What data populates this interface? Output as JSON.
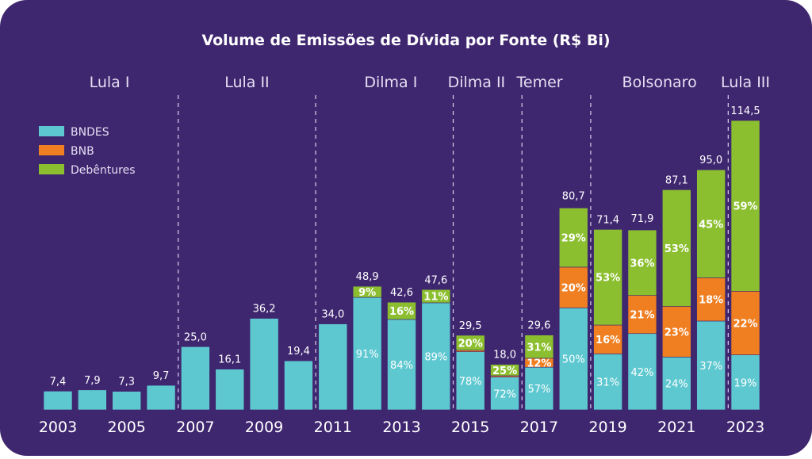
{
  "chart_data": {
    "type": "bar",
    "stacked": true,
    "title": "Volume de Emissões de Dívida por Fonte (R$ Bi)",
    "xlabel": "",
    "ylabel": "",
    "ylim": [
      0,
      120
    ],
    "grid": false,
    "legend_position": "top-left",
    "categories": [
      "2003",
      "2004",
      "2005",
      "2006",
      "2007",
      "2008",
      "2009",
      "2010",
      "2011",
      "2012",
      "2013",
      "2014",
      "2015",
      "2016",
      "2017",
      "2018",
      "2019",
      "2020",
      "2021",
      "2022",
      "2023"
    ],
    "tick_labels": [
      "2003",
      "2005",
      "2007",
      "2009",
      "2011",
      "2013",
      "2015",
      "2017",
      "2019",
      "2021",
      "2023"
    ],
    "totals": [
      7.4,
      7.9,
      7.3,
      9.7,
      25.0,
      16.1,
      36.2,
      19.4,
      34.0,
      48.9,
      42.6,
      47.6,
      29.5,
      18.0,
      29.6,
      80.7,
      71.4,
      71.9,
      87.1,
      95.0,
      114.5
    ],
    "total_labels": [
      "7,4",
      "7,9",
      "7,3",
      "9,7",
      "25,0",
      "16,1",
      "36,2",
      "19,4",
      "34,0",
      "48,9",
      "42,6",
      "47,6",
      "29,5",
      "18,0",
      "29,6",
      "80,7",
      "71,4",
      "71,9",
      "87,1",
      "95,0",
      "114,5"
    ],
    "series": [
      {
        "name": "BNDES",
        "color": "#5ec8d0",
        "share_pct": [
          100,
          100,
          100,
          100,
          100,
          100,
          100,
          100,
          100,
          91,
          84,
          89,
          78,
          72,
          57,
          50,
          31,
          42,
          24,
          37,
          19
        ]
      },
      {
        "name": "BNB",
        "color": "#f07f22",
        "share_pct": [
          0,
          0,
          0,
          0,
          0,
          0,
          0,
          0,
          0,
          0,
          0,
          0,
          2,
          3,
          12,
          20,
          16,
          21,
          23,
          18,
          22
        ]
      },
      {
        "name": "Debêntures",
        "color": "#8cbf30",
        "share_pct": [
          0,
          0,
          0,
          0,
          0,
          0,
          0,
          0,
          0,
          9,
          16,
          11,
          20,
          25,
          31,
          29,
          53,
          36,
          53,
          45,
          59
        ]
      }
    ],
    "periods": [
      {
        "label": "Lula I",
        "years": [
          "2003",
          "2006"
        ]
      },
      {
        "label": "Lula II",
        "years": [
          "2007",
          "2010"
        ]
      },
      {
        "label": "Dilma I",
        "years": [
          "2011",
          "2014"
        ]
      },
      {
        "label": "Dilma II",
        "years": [
          "2015",
          "2016"
        ]
      },
      {
        "label": "Temer",
        "years": [
          "2017",
          "2018"
        ]
      },
      {
        "label": "Bolsonaro",
        "years": [
          "2019",
          "2022"
        ]
      },
      {
        "label": "Lula III",
        "years": [
          "2023",
          "2023"
        ]
      }
    ]
  },
  "colors": {
    "background": "#3f2770",
    "text": "#ffffff",
    "period_text": "#e6def2",
    "divider": "#d9d0ea"
  }
}
